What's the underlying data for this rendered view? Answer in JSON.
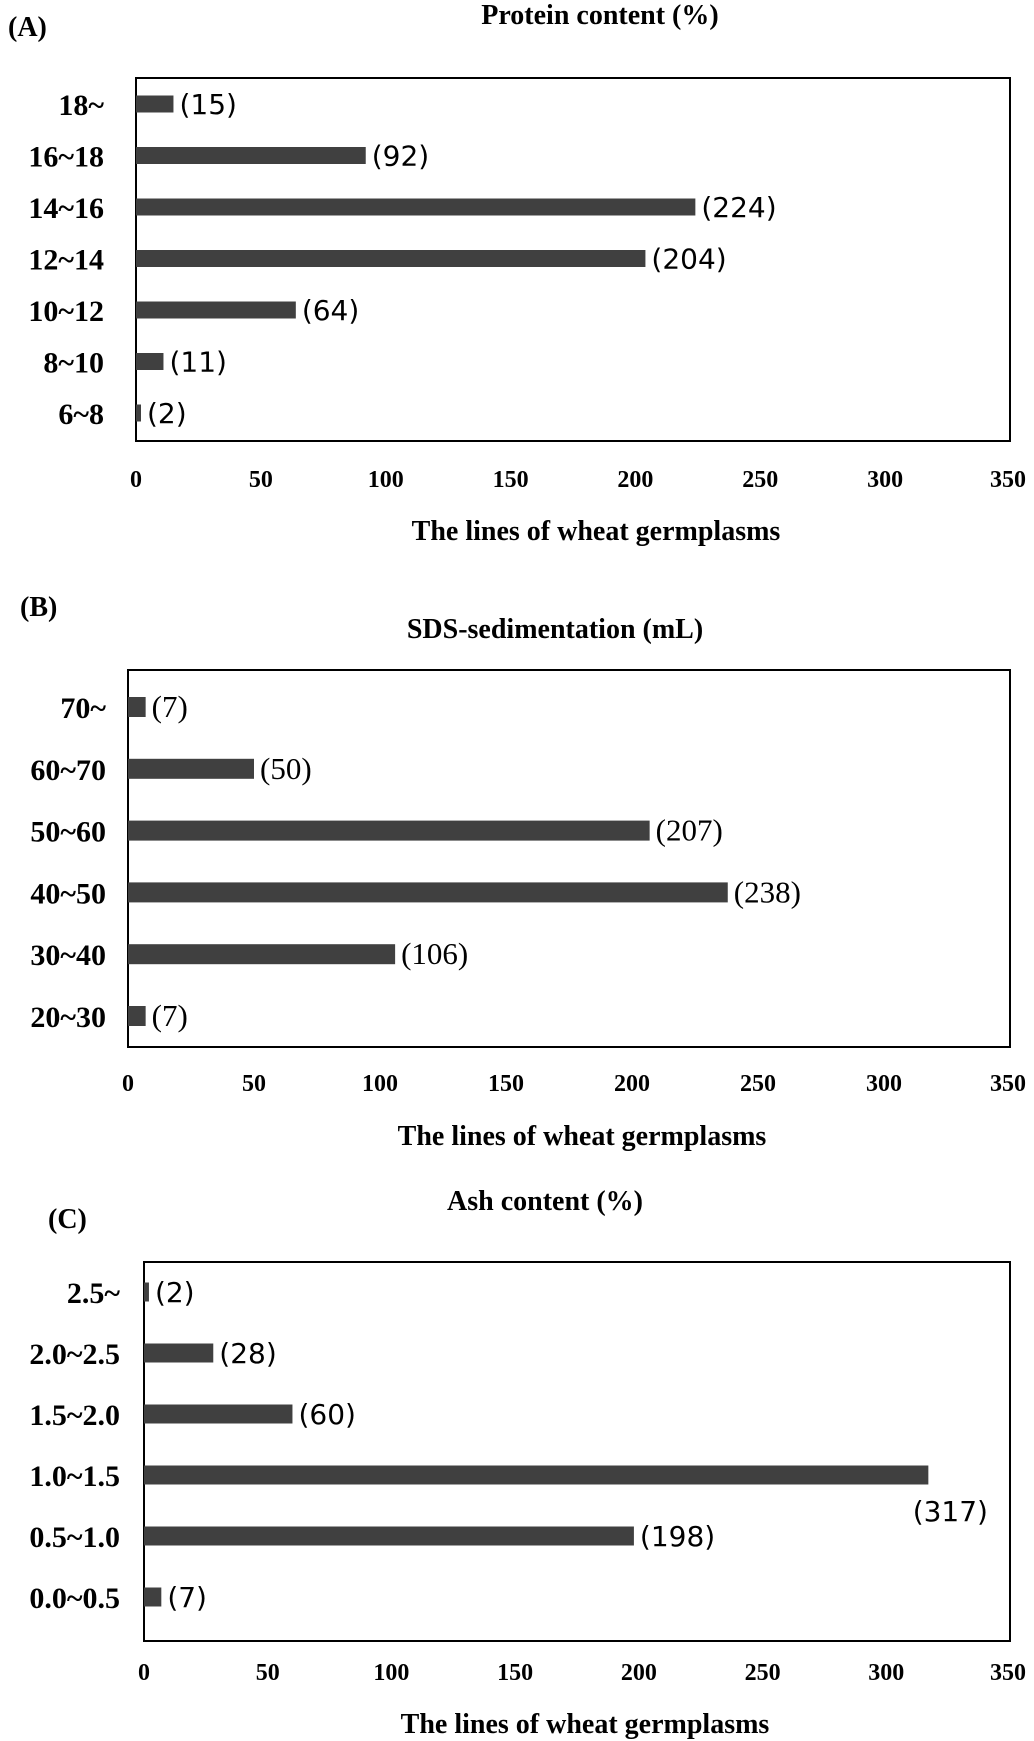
{
  "chart_data": [
    {
      "type": "bar",
      "orientation": "horizontal",
      "panel_label": "(A)",
      "title": "Protein content (%)",
      "xlabel": "The lines of wheat germplasms",
      "ylabel": "",
      "categories": [
        "6~8",
        "8~10",
        "10~12",
        "12~14",
        "14~16",
        "16~18",
        "18~"
      ],
      "values": [
        2,
        11,
        64,
        204,
        224,
        92,
        15
      ],
      "data_labels": [
        "(2)",
        "(11)",
        "(64)",
        "(204)",
        "(224)",
        "(92)",
        "(15)"
      ],
      "xlim": [
        0,
        350
      ],
      "xticks": [
        "0",
        "50",
        "100",
        "150",
        "200",
        "250",
        "300",
        "350"
      ],
      "grid": false,
      "bar_color": "#404040"
    },
    {
      "type": "bar",
      "orientation": "horizontal",
      "panel_label": "(B)",
      "title": "SDS-sedimentation (mL)",
      "xlabel": "The lines of wheat germplasms",
      "ylabel": "",
      "categories": [
        "20~30",
        "30~40",
        "40~50",
        "50~60",
        "60~70",
        "70~"
      ],
      "values": [
        7,
        106,
        238,
        207,
        50,
        7
      ],
      "data_labels": [
        "(7)",
        "(106)",
        "(238)",
        "(207)",
        "(50)",
        "(7)"
      ],
      "xlim": [
        0,
        350
      ],
      "xticks": [
        "0",
        "50",
        "100",
        "150",
        "200",
        "250",
        "300",
        "350"
      ],
      "grid": false,
      "bar_color": "#404040"
    },
    {
      "type": "bar",
      "orientation": "horizontal",
      "panel_label": "(C)",
      "title": "Ash content (%)",
      "xlabel": "The lines of wheat germplasms",
      "ylabel": "",
      "categories": [
        "0.0~0.5",
        "0.5~1.0",
        "1.0~1.5",
        "1.5~2.0",
        "2.0~2.5",
        "2.5~"
      ],
      "values": [
        7,
        198,
        317,
        60,
        28,
        2
      ],
      "data_labels": [
        "(7)",
        "(198)",
        "(317)",
        "(60)",
        "(28)",
        "(2)"
      ],
      "xlim": [
        0,
        350
      ],
      "xticks": [
        "0",
        "50",
        "100",
        "150",
        "200",
        "250",
        "300",
        "350"
      ],
      "grid": false,
      "bar_color": "#404040"
    }
  ]
}
